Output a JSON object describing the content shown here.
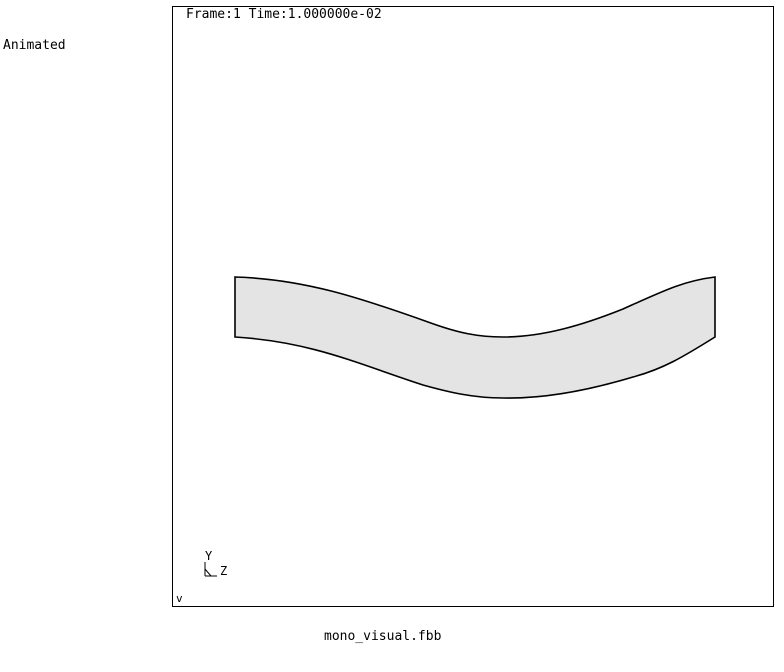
{
  "side_label": "Animated",
  "viewport": {
    "frame_info": "Frame:1 Time:1.000000e-02",
    "axis_triad": {
      "y_label": "Y",
      "z_label": "Z"
    },
    "corner_mark": "v"
  },
  "filename": "mono_visual.fbb",
  "colors": {
    "beam_fill": "#e4e4e4",
    "beam_edge": "#000000",
    "background": "#ffffff"
  }
}
